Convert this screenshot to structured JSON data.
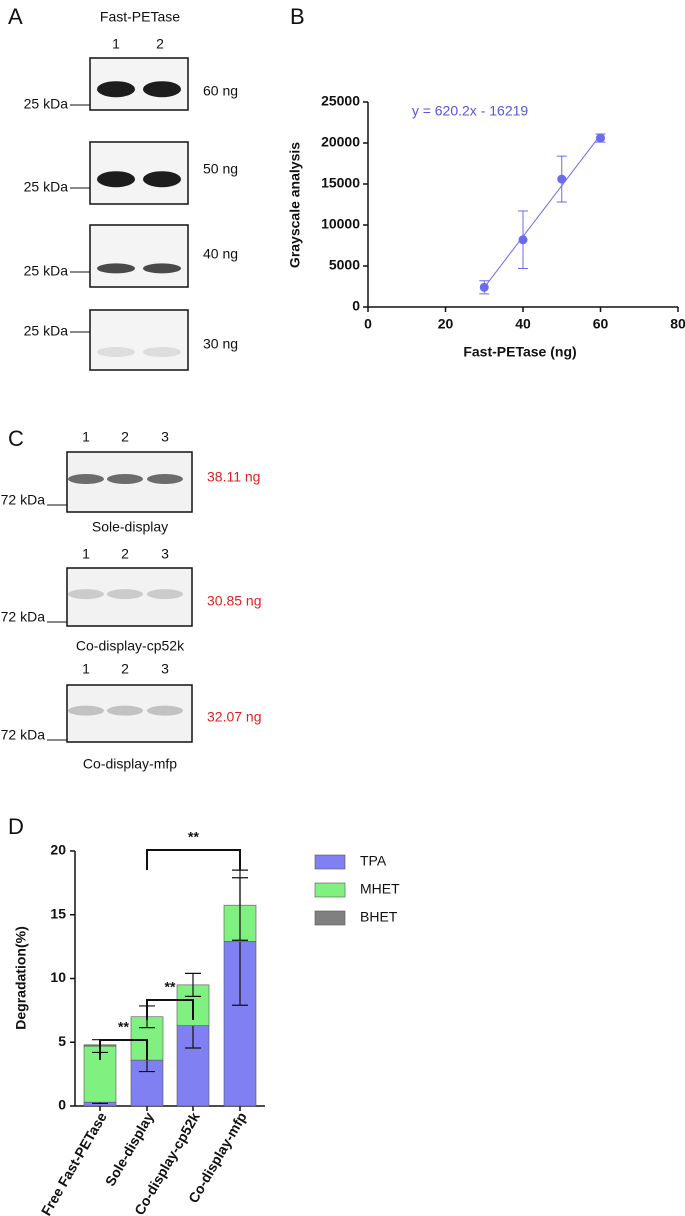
{
  "panels": {
    "a": {
      "label": "A",
      "protein": "Fast-PETase",
      "lanes": [
        "1",
        "2"
      ],
      "blots": [
        {
          "marker": "25 kDa",
          "amount": "60 ng"
        },
        {
          "marker": "25 kDa",
          "amount": "50 ng"
        },
        {
          "marker": "25 kDa",
          "amount": "40 ng"
        },
        {
          "marker": "25 kDa",
          "amount": "30 ng"
        }
      ]
    },
    "c": {
      "label": "C",
      "blots": [
        {
          "lanes": [
            "1",
            "2",
            "3"
          ],
          "marker": "72 kDa",
          "amount": "38.11 ng",
          "name": "Sole-display"
        },
        {
          "lanes": [
            "1",
            "2",
            "3"
          ],
          "marker": "72 kDa",
          "amount": "30.85 ng",
          "name": "Co-display-cp52k"
        },
        {
          "lanes": [
            "1",
            "2",
            "3"
          ],
          "marker": "72 kDa",
          "amount": "32.07 ng",
          "name": "Co-display-mfp"
        }
      ]
    }
  },
  "chart_data": [
    {
      "type": "scatter",
      "label": "B",
      "xlabel": "Fast-PETase (ng)",
      "ylabel": "Grayscale analysis",
      "annotation": "y = 620.2x - 16219",
      "fit": {
        "slope": 620.2,
        "intercept": -16219
      },
      "x": [
        30,
        40,
        50,
        60
      ],
      "values": [
        2400,
        8200,
        15600,
        20600
      ],
      "errors": [
        800,
        3500,
        2800,
        500
      ],
      "color": "#6b6bee",
      "xlim": [
        0,
        80
      ],
      "xticks": [
        0,
        20,
        40,
        60,
        80
      ],
      "ylim": [
        0,
        25000
      ],
      "yticks": [
        0,
        5000,
        10000,
        15000,
        20000,
        25000
      ]
    },
    {
      "type": "bar",
      "label": "D",
      "ylabel": "Degradation(%)",
      "stacked": true,
      "legend": "right",
      "categories": [
        "Free Fast-PETase",
        "Sole-display",
        "Co-display-cp52k",
        "Co-display-mfp"
      ],
      "series": [
        {
          "name": "TPA",
          "color": "#8080f2",
          "values": [
            0.3,
            3.6,
            6.3,
            12.9
          ],
          "errors": [
            0.1,
            0.9,
            1.75,
            5.0
          ]
        },
        {
          "name": "MHET",
          "color": "#80f080",
          "values": [
            4.4,
            3.4,
            3.2,
            2.85
          ],
          "errors": [
            0.5,
            0.85,
            0.9,
            2.75
          ]
        },
        {
          "name": "BHET",
          "color": "#808080",
          "values": [
            0.1,
            0,
            0,
            0
          ]
        }
      ],
      "ylim": [
        0,
        20
      ],
      "yticks": [
        0,
        5,
        10,
        15,
        20
      ],
      "significance": [
        {
          "from": 0,
          "to": 1,
          "label": "**"
        },
        {
          "from": 1,
          "to": 2,
          "label": "**"
        },
        {
          "from": 1,
          "to": 3,
          "label": "**"
        }
      ]
    }
  ]
}
